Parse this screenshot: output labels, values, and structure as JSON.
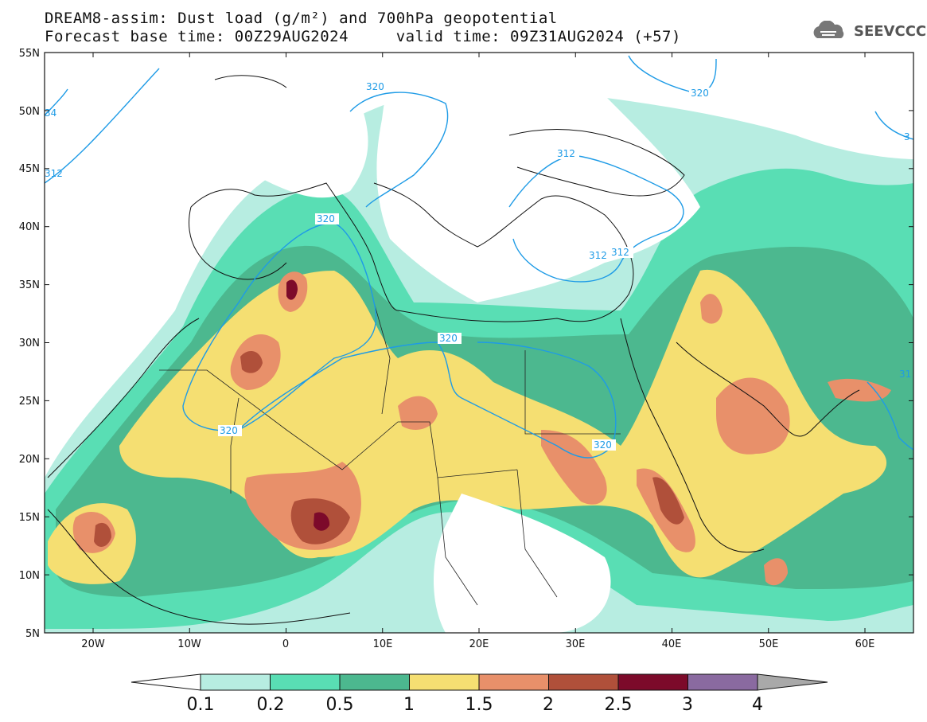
{
  "header": {
    "line1": "DREAM8-assim: Dust load (g/m²) and 700hPa geopotential",
    "line2": "Forecast base time: 00Z29AUG2024     valid time: 09Z31AUG2024 (+57)"
  },
  "logo": {
    "icon": "cloud-icon",
    "text": "SEEVCCC"
  },
  "map": {
    "lat_labels": [
      "55N",
      "50N",
      "45N",
      "40N",
      "35N",
      "30N",
      "25N",
      "20N",
      "15N",
      "10N",
      "5N"
    ],
    "lon_labels": [
      "20W",
      "10W",
      "0",
      "10E",
      "20E",
      "30E",
      "40E",
      "50E",
      "60E"
    ],
    "contour_labels": [
      "34",
      "312",
      "320",
      "320",
      "320",
      "320",
      "312",
      "320",
      "312",
      "312",
      "320",
      "31",
      "3"
    ],
    "contour_color": "#1e9be6"
  },
  "colorbar": {
    "labels": [
      "0.1",
      "0.2",
      "0.5",
      "1",
      "1.5",
      "2",
      "2.5",
      "3",
      "4"
    ],
    "colors": [
      "#ffffff",
      "#b7ede1",
      "#59deb4",
      "#4cb88f",
      "#f5df72",
      "#e8906a",
      "#b0503a",
      "#7c0a2a",
      "#8a6aa0",
      "#a9a9a9"
    ]
  }
}
